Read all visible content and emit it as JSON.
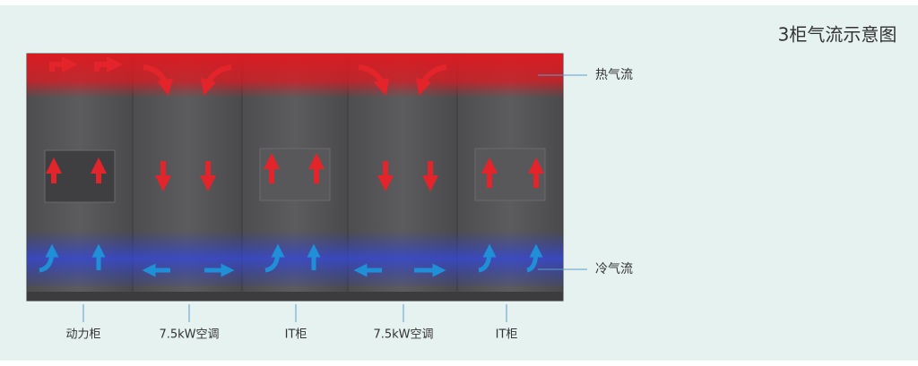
{
  "title": "3柜气流示意图",
  "legend": {
    "hot": "热气流",
    "cold": "冷气流"
  },
  "cabinets": [
    {
      "label": "动力柜"
    },
    {
      "label": "7.5kW空调"
    },
    {
      "label": "IT柜"
    },
    {
      "label": "7.5kW空调"
    },
    {
      "label": "IT柜"
    }
  ]
}
